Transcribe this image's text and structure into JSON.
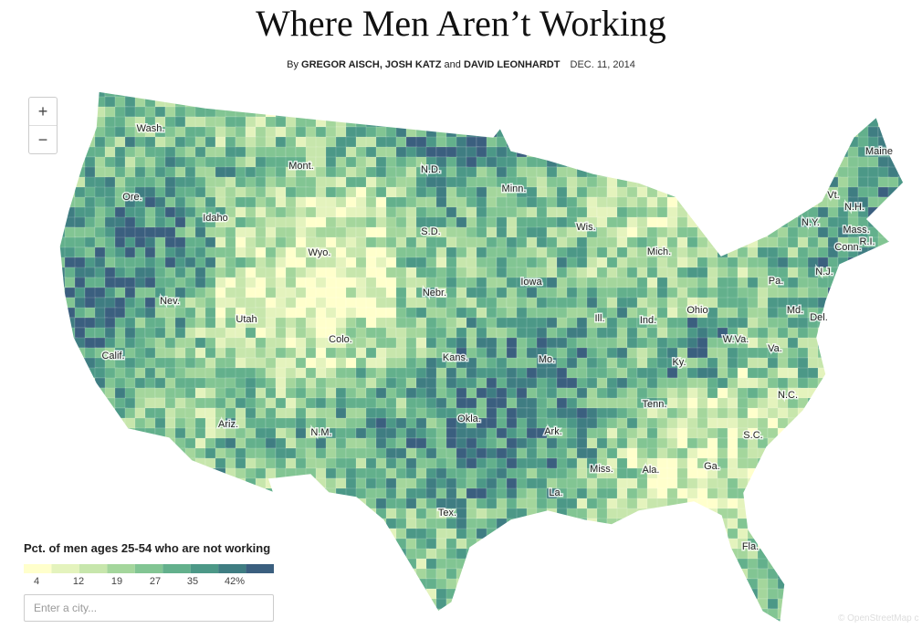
{
  "header": {
    "title": "Where Men Aren’t Working",
    "byline_prefix": "By",
    "authors": "GREGOR AISCH, JOSH KATZ",
    "and": "and",
    "last_author": "DAVID LEONHARDT",
    "date": "DEC. 11, 2014"
  },
  "zoom": {
    "in": "+",
    "out": "−"
  },
  "map": {
    "state_labels": [
      "Wash.",
      "Mont.",
      "N.D.",
      "Minn.",
      "Maine",
      "Ore.",
      "Idaho",
      "Vt.",
      "N.H.",
      "N.Y.",
      "Mass.",
      "Wis.",
      "S.D.",
      "Wyo.",
      "Mich.",
      "R.I.",
      "Conn.",
      "Nev.",
      "Iowa",
      "Pa.",
      "N.J.",
      "Nebr.",
      "Utah",
      "Ohio",
      "Md.",
      "Ill.",
      "Ind.",
      "Del.",
      "Colo.",
      "W.Va.",
      "Calif.",
      "Kans.",
      "Mo.",
      "Va.",
      "Ky.",
      "Tenn.",
      "N.C.",
      "Okla.",
      "Ark.",
      "S.C.",
      "Ariz.",
      "N.M.",
      "Ga.",
      "Miss.",
      "Ala.",
      "La.",
      "Tex.",
      "Fla."
    ]
  },
  "legend": {
    "title": "Pct. of men ages 25-54 who are not working",
    "labels": [
      "4",
      "12",
      "19",
      "27",
      "35",
      "42%"
    ],
    "colors": [
      "#ffffcc",
      "#e4f3bd",
      "#c7e6ac",
      "#a4d69c",
      "#82c593",
      "#63b08c",
      "#4c9887",
      "#3f7d82",
      "#3b5f7f"
    ]
  },
  "search": {
    "placeholder": "Enter a city..."
  },
  "attribution": "© OpenStreetMap c"
}
